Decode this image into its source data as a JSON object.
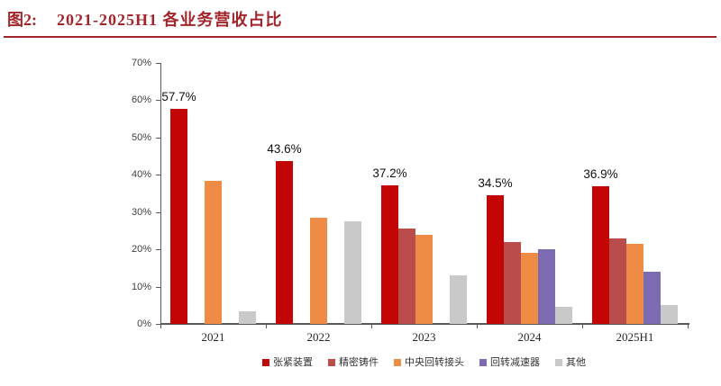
{
  "figure": {
    "label": "图2:",
    "title": "2021-2025H1 各业务营收占比",
    "title_color": "#A3252C",
    "rule_color": "#A3252C"
  },
  "axis": {
    "color": "#595959",
    "label_color": "#404040"
  },
  "chart_data": {
    "type": "bar",
    "title": "2021-2025H1 各业务营收占比",
    "categories": [
      "2021",
      "2022",
      "2023",
      "2024",
      "2025H1"
    ],
    "series": [
      {
        "name": "张紧装置",
        "color": "#C40505",
        "values": [
          57.7,
          43.6,
          37.2,
          34.5,
          36.9
        ]
      },
      {
        "name": "精密铸件",
        "color": "#BB4C4C",
        "values": [
          null,
          null,
          25.5,
          22.0,
          23.0
        ]
      },
      {
        "name": "中央回转接头",
        "color": "#EE8B45",
        "values": [
          38.5,
          28.5,
          24.0,
          19.0,
          21.5
        ]
      },
      {
        "name": "回转减速器",
        "color": "#7D6BB2",
        "values": [
          null,
          null,
          null,
          20.0,
          14.0
        ]
      },
      {
        "name": "其他",
        "color": "#C9C9C9",
        "values": [
          3.5,
          27.5,
          13.0,
          4.5,
          5.0
        ]
      }
    ],
    "bar_labels": {
      "series_index": 0,
      "labels": [
        "57.7%",
        "43.6%",
        "37.2%",
        "34.5%",
        "36.9%"
      ]
    },
    "xlabel": "",
    "ylabel": "",
    "ylim": [
      0,
      70
    ],
    "ytick_step": 10,
    "ytick_suffix": "%",
    "grid": false,
    "legend_position": "bottom"
  }
}
